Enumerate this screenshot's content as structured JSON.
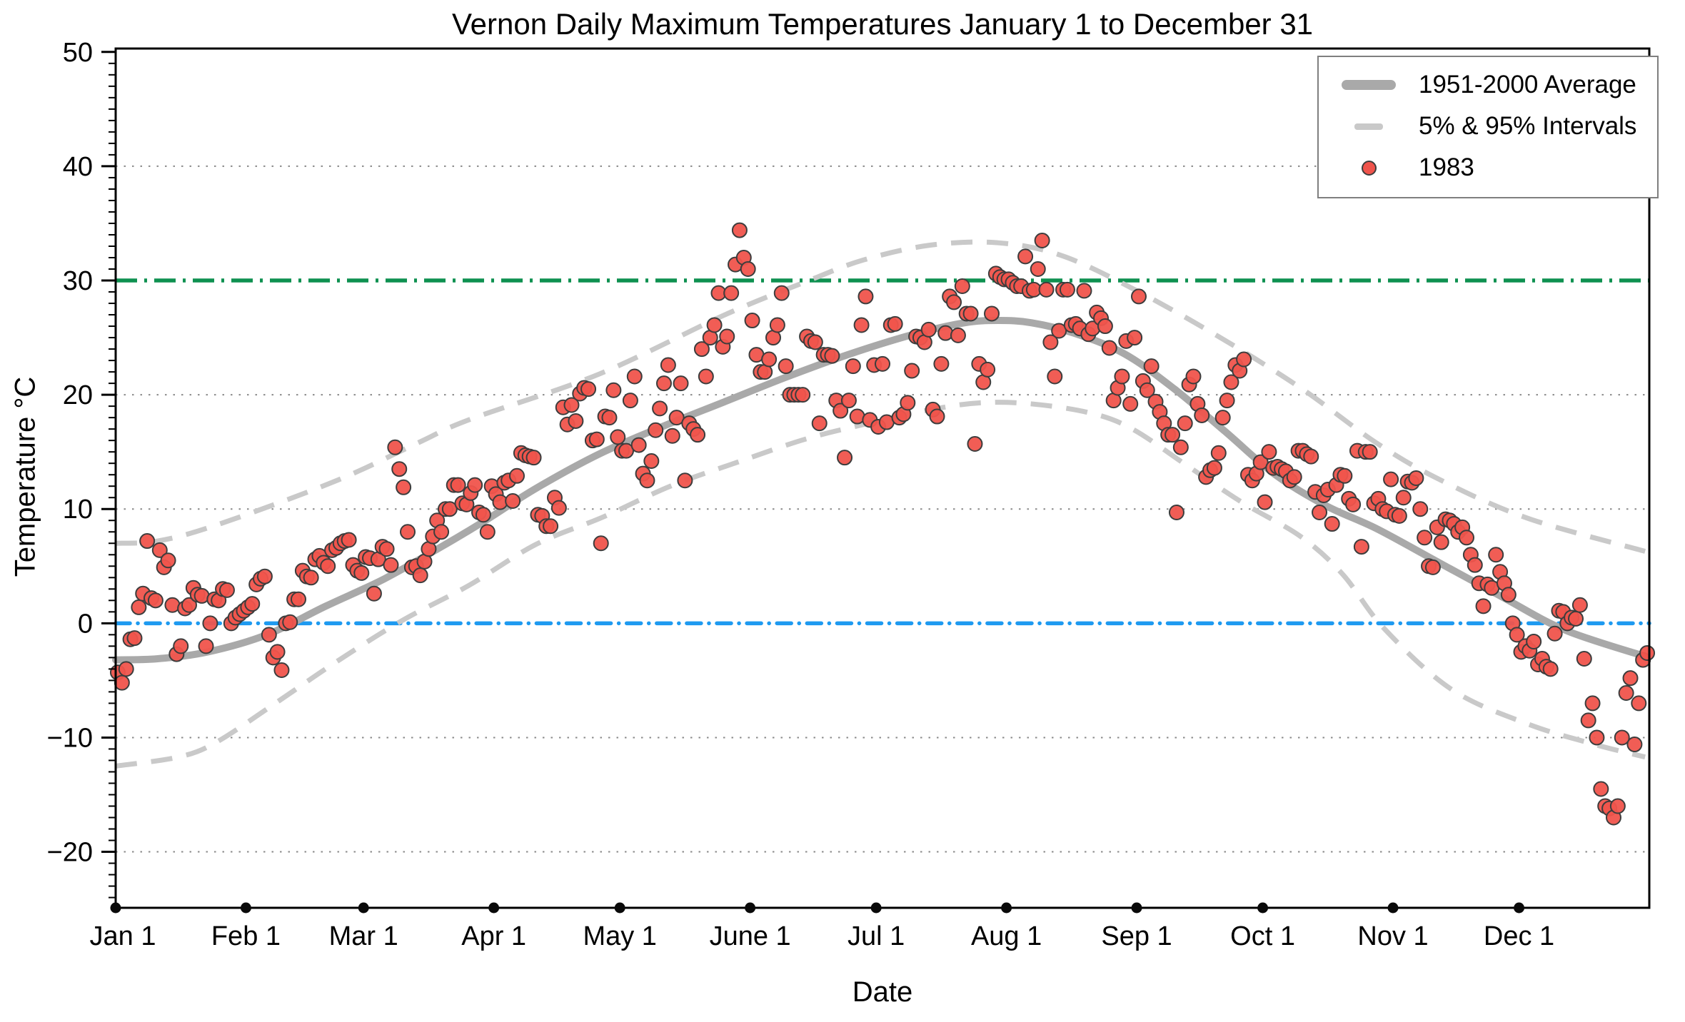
{
  "title": "Vernon Daily Maximum Temperatures January 1 to December 31",
  "axes": {
    "y_label": "Temperature °C",
    "x_label": "Date",
    "y_tick_values": [
      50,
      40,
      30,
      20,
      10,
      0,
      -10,
      -20
    ],
    "y_minor_step": 1,
    "x_tick_labels": [
      "Jan 1",
      "Feb 1",
      "Mar 1",
      "Apr 1",
      "May 1",
      "June 1",
      "Jul 1",
      "Aug 1",
      "Sep 1",
      "Oct 1",
      "Nov 1",
      "Dec 1"
    ],
    "x_tick_days": [
      0,
      31,
      59,
      90,
      120,
      151,
      181,
      212,
      243,
      273,
      304,
      334
    ],
    "grid_value_lines": [
      40,
      20,
      10,
      -10,
      -20
    ]
  },
  "legend": {
    "items": [
      {
        "label": "1951-2000 Average",
        "swatch": "thick-gray-line"
      },
      {
        "label": "5% & 95% Intervals",
        "swatch": "gray-dash"
      },
      {
        "label": "1983",
        "swatch": "red-dot"
      }
    ]
  },
  "colors": {
    "point_fill": "#f0544c",
    "point_stroke": "#3d3d3d",
    "average_line": "#a9a9a9",
    "interval_dash": "#c9c9c9",
    "green_line": "#0e9150",
    "blue_line": "#1e9af0",
    "grid_dotted": "#8a8a8a",
    "frame": "#000000"
  },
  "chart_data": {
    "type": "scatter",
    "title": "Vernon Daily Maximum Temperatures January 1 to December 31",
    "xlabel": "Date",
    "ylabel": "Temperature °C",
    "ylim": [
      -24.9,
      50.3
    ],
    "x_unit": "day_of_year",
    "x_range_days": [
      0,
      365
    ],
    "grid": "dotted-horizontal",
    "legend_position": "top-right",
    "reference_lines": [
      {
        "name": "30C-threshold",
        "y": 30,
        "style": "dashed",
        "color": "#0e9150"
      },
      {
        "name": "0C-freezing",
        "y": 0,
        "style": "dash-dot",
        "color": "#1e9af0"
      }
    ],
    "series": [
      {
        "name": "1951-2000 Average",
        "type": "line",
        "style": "thick-solid-gray",
        "points": [
          [
            0,
            -3.2
          ],
          [
            10,
            -3.1
          ],
          [
            22,
            -2.5
          ],
          [
            36,
            -1.0
          ],
          [
            50,
            1.5
          ],
          [
            64,
            3.9
          ],
          [
            78,
            6.8
          ],
          [
            88,
            9.0
          ],
          [
            100,
            11.8
          ],
          [
            115,
            14.8
          ],
          [
            130,
            17.2
          ],
          [
            145,
            19.4
          ],
          [
            160,
            21.6
          ],
          [
            175,
            23.6
          ],
          [
            190,
            25.3
          ],
          [
            202,
            26.3
          ],
          [
            210,
            26.5
          ],
          [
            218,
            26.3
          ],
          [
            228,
            25.4
          ],
          [
            240,
            23.6
          ],
          [
            252,
            20.5
          ],
          [
            264,
            16.8
          ],
          [
            276,
            13.0
          ],
          [
            288,
            10.3
          ],
          [
            300,
            8.3
          ],
          [
            315,
            5.3
          ],
          [
            330,
            2.3
          ],
          [
            345,
            -0.6
          ],
          [
            364,
            -2.9
          ]
        ]
      },
      {
        "name": "95% Interval",
        "type": "line",
        "style": "dashed-gray",
        "points": [
          [
            0,
            7.0
          ],
          [
            10,
            7.2
          ],
          [
            24,
            8.6
          ],
          [
            52,
            12.4
          ],
          [
            72,
            15.8
          ],
          [
            84,
            17.8
          ],
          [
            115,
            21.8
          ],
          [
            145,
            27.0
          ],
          [
            165,
            30.0
          ],
          [
            178,
            31.8
          ],
          [
            194,
            33.1
          ],
          [
            210,
            33.3
          ],
          [
            225,
            32.2
          ],
          [
            242,
            29.3
          ],
          [
            262,
            25.2
          ],
          [
            282,
            20.6
          ],
          [
            300,
            15.8
          ],
          [
            315,
            12.6
          ],
          [
            336,
            9.2
          ],
          [
            364,
            6.3
          ]
        ]
      },
      {
        "name": "5% Interval",
        "type": "line",
        "style": "dashed-gray",
        "points": [
          [
            0,
            -12.5
          ],
          [
            15,
            -11.7
          ],
          [
            24,
            -10.4
          ],
          [
            38,
            -7.0
          ],
          [
            52,
            -3.5
          ],
          [
            68,
            0.2
          ],
          [
            84,
            3.3
          ],
          [
            100,
            6.9
          ],
          [
            116,
            9.3
          ],
          [
            132,
            12.0
          ],
          [
            148,
            14.1
          ],
          [
            164,
            16.1
          ],
          [
            178,
            17.4
          ],
          [
            194,
            18.7
          ],
          [
            206,
            19.3
          ],
          [
            218,
            19.2
          ],
          [
            232,
            18.4
          ],
          [
            242,
            17.0
          ],
          [
            255,
            13.8
          ],
          [
            268,
            10.6
          ],
          [
            282,
            7.6
          ],
          [
            292,
            4.3
          ],
          [
            302,
            -0.5
          ],
          [
            318,
            -5.8
          ],
          [
            336,
            -8.8
          ],
          [
            352,
            -10.6
          ],
          [
            364,
            -11.7
          ]
        ]
      },
      {
        "name": "1983",
        "type": "scatter",
        "start_day": 0,
        "daily_values": [
          -4.3,
          -5.2,
          -4.0,
          -1.4,
          -1.3,
          1.4,
          2.6,
          7.2,
          2.2,
          2.0,
          6.4,
          4.9,
          5.5,
          1.6,
          -2.7,
          -2.0,
          1.3,
          1.6,
          3.1,
          2.5,
          2.4,
          -2.0,
          0.0,
          2.1,
          2.0,
          3.0,
          2.9,
          0.0,
          0.5,
          0.8,
          1.1,
          1.4,
          1.7,
          3.4,
          3.9,
          4.1,
          -1.0,
          -3.0,
          -2.5,
          -4.1,
          0.0,
          0.1,
          2.1,
          2.1,
          4.6,
          4.1,
          4.0,
          5.6,
          5.9,
          5.3,
          5.0,
          6.4,
          6.6,
          7.0,
          7.2,
          7.3,
          5.1,
          4.6,
          4.4,
          5.8,
          5.7,
          2.6,
          5.6,
          6.7,
          6.5,
          5.1,
          15.4,
          13.5,
          11.9,
          8.0,
          4.9,
          5.0,
          4.2,
          5.4,
          6.5,
          7.6,
          9.0,
          8.0,
          10.0,
          10.0,
          12.1,
          12.1,
          10.5,
          10.4,
          11.4,
          12.1,
          9.7,
          9.5,
          8.0,
          12.0,
          11.3,
          10.6,
          12.3,
          12.5,
          10.7,
          12.9,
          14.9,
          14.7,
          14.6,
          14.5,
          9.5,
          9.4,
          8.5,
          8.5,
          11.0,
          10.1,
          18.9,
          17.4,
          19.1,
          17.7,
          20.1,
          20.6,
          20.5,
          16.0,
          16.1,
          7.0,
          18.1,
          18.0,
          20.4,
          16.3,
          15.1,
          15.1,
          19.5,
          21.6,
          15.6,
          13.1,
          12.5,
          14.2,
          16.9,
          18.8,
          21.0,
          22.6,
          16.4,
          18.0,
          21.0,
          12.5,
          17.5,
          17.0,
          16.5,
          24.0,
          21.6,
          25.0,
          26.1,
          28.9,
          24.2,
          25.1,
          28.9,
          31.4,
          34.4,
          32.0,
          31.0,
          26.5,
          23.5,
          22.0,
          22.0,
          23.1,
          25.0,
          26.1,
          28.9,
          22.5,
          20.0,
          20.0,
          20.0,
          20.0,
          25.1,
          24.7,
          24.6,
          17.5,
          23.5,
          23.5,
          23.4,
          19.5,
          18.6,
          14.5,
          19.5,
          22.5,
          18.1,
          26.1,
          28.6,
          17.8,
          22.6,
          17.2,
          22.7,
          17.6,
          26.1,
          26.2,
          18.0,
          18.3,
          19.3,
          22.1,
          25.1,
          25.0,
          24.6,
          25.7,
          18.7,
          18.1,
          22.7,
          25.4,
          28.6,
          28.1,
          25.2,
          29.5,
          27.1,
          27.1,
          15.7,
          22.7,
          21.1,
          22.2,
          27.1,
          30.6,
          30.3,
          30.1,
          30.1,
          29.8,
          29.5,
          29.5,
          32.1,
          29.1,
          29.2,
          31.0,
          33.5,
          29.2,
          24.6,
          21.6,
          25.6,
          29.2,
          29.2,
          26.1,
          26.2,
          25.8,
          29.1,
          25.3,
          25.8,
          27.2,
          26.7,
          26.0,
          24.1,
          19.5,
          20.6,
          21.6,
          24.7,
          19.2,
          25.0,
          28.6,
          21.2,
          20.4,
          22.5,
          19.4,
          18.5,
          17.5,
          16.5,
          16.5,
          9.7,
          15.4,
          17.5,
          20.9,
          21.6,
          19.2,
          18.2,
          12.8,
          13.4,
          13.6,
          14.9,
          18.0,
          19.5,
          21.1,
          22.6,
          22.1,
          23.1,
          13.0,
          12.5,
          13.1,
          14.1,
          10.6,
          15.0,
          13.6,
          13.7,
          13.5,
          13.3,
          12.5,
          12.8,
          15.1,
          15.1,
          14.8,
          14.6,
          11.5,
          9.7,
          11.2,
          11.7,
          8.7,
          12.1,
          13.0,
          12.9,
          10.9,
          10.4,
          15.1,
          6.7,
          15.0,
          15.0,
          10.5,
          10.9,
          10.0,
          9.8,
          12.6,
          9.5,
          9.4,
          11.0,
          12.4,
          12.3,
          12.7,
          10.0,
          7.5,
          5.0,
          4.9,
          8.4,
          7.1,
          9.1,
          9.0,
          8.7,
          8.0,
          8.4,
          7.5,
          6.0,
          5.1,
          3.5,
          1.5,
          3.4,
          3.1,
          6.0,
          4.5,
          3.5,
          2.5,
          0.0,
          -1.0,
          -2.5,
          -2.0,
          -2.4,
          -1.6,
          -3.6,
          -3.1,
          -3.8,
          -4.0,
          -0.9,
          1.1,
          1.0,
          0.0,
          0.5,
          0.4,
          1.6,
          -3.1,
          -8.5,
          -7.0,
          -10.0,
          -14.5,
          -16.0,
          -16.2,
          -17.0,
          -16.0,
          -10.0,
          -6.1,
          -4.8,
          -10.6,
          -7.0,
          -3.2,
          -2.6
        ]
      }
    ]
  }
}
